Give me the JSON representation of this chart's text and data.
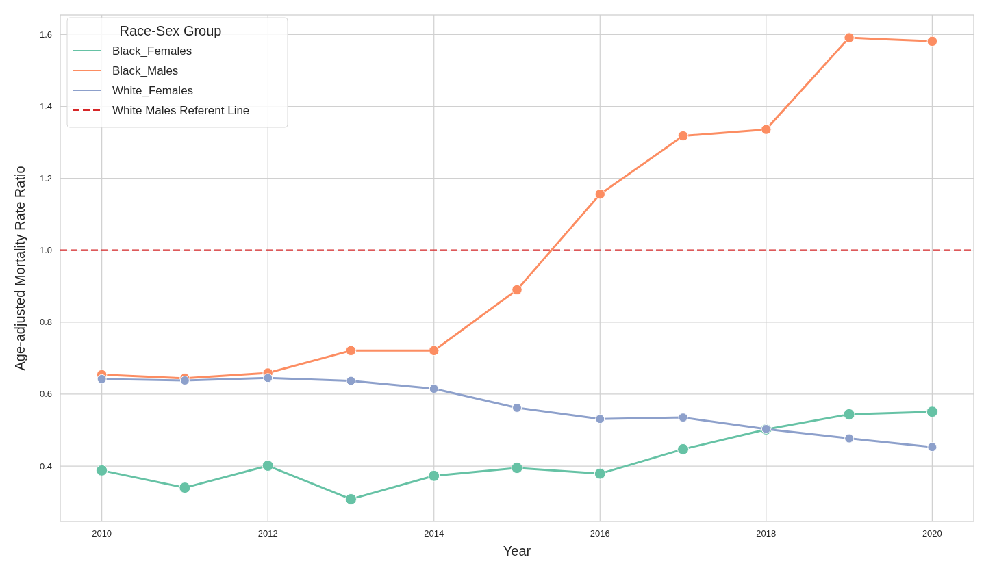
{
  "chart_data": {
    "type": "line",
    "xlabel": "Year",
    "ylabel": "Age-adjusted Mortality Rate Ratio",
    "legend_title": "Race-Sex Group",
    "x": [
      2010,
      2011,
      2012,
      2013,
      2014,
      2015,
      2016,
      2017,
      2018,
      2019,
      2020
    ],
    "series": [
      {
        "name": "Black_Females",
        "color": "#66c2a5",
        "values": [
          0.388,
          0.34,
          0.401,
          0.308,
          0.373,
          0.395,
          0.379,
          0.447,
          0.502,
          0.544,
          0.551
        ]
      },
      {
        "name": "Black_Males",
        "color": "#fc8d62",
        "values": [
          0.654,
          0.644,
          0.659,
          0.721,
          0.721,
          0.89,
          1.156,
          1.318,
          1.336,
          1.591,
          1.581
        ]
      },
      {
        "name": "White_Females",
        "color": "#8da0cb",
        "values": [
          0.642,
          0.638,
          0.645,
          0.637,
          0.615,
          0.562,
          0.531,
          0.535,
          0.503,
          0.477,
          0.453
        ]
      }
    ],
    "ref_lines": [
      {
        "axis": "y",
        "value": 1.0,
        "label": "White Males Referent Line",
        "color": "#d62728",
        "line_style": "dashed"
      }
    ],
    "xlim": [
      2009.5,
      2020.5
    ],
    "xticks": [
      2010,
      2012,
      2014,
      2016,
      2018,
      2020
    ],
    "ylim": [
      0.246,
      1.654
    ],
    "yticks": [
      {
        "value": 0.4,
        "label": "0.4"
      },
      {
        "value": 0.6,
        "label": "0.6"
      },
      {
        "value": 0.8,
        "label": "0.8"
      },
      {
        "value": 1.0,
        "label": "1.0"
      },
      {
        "value": 1.2,
        "label": "1.2"
      },
      {
        "value": 1.4,
        "label": "1.4"
      },
      {
        "value": 1.6,
        "label": "1.6"
      }
    ],
    "grid": true,
    "legend": "top left",
    "marker": "circle",
    "line_style": "solid"
  }
}
